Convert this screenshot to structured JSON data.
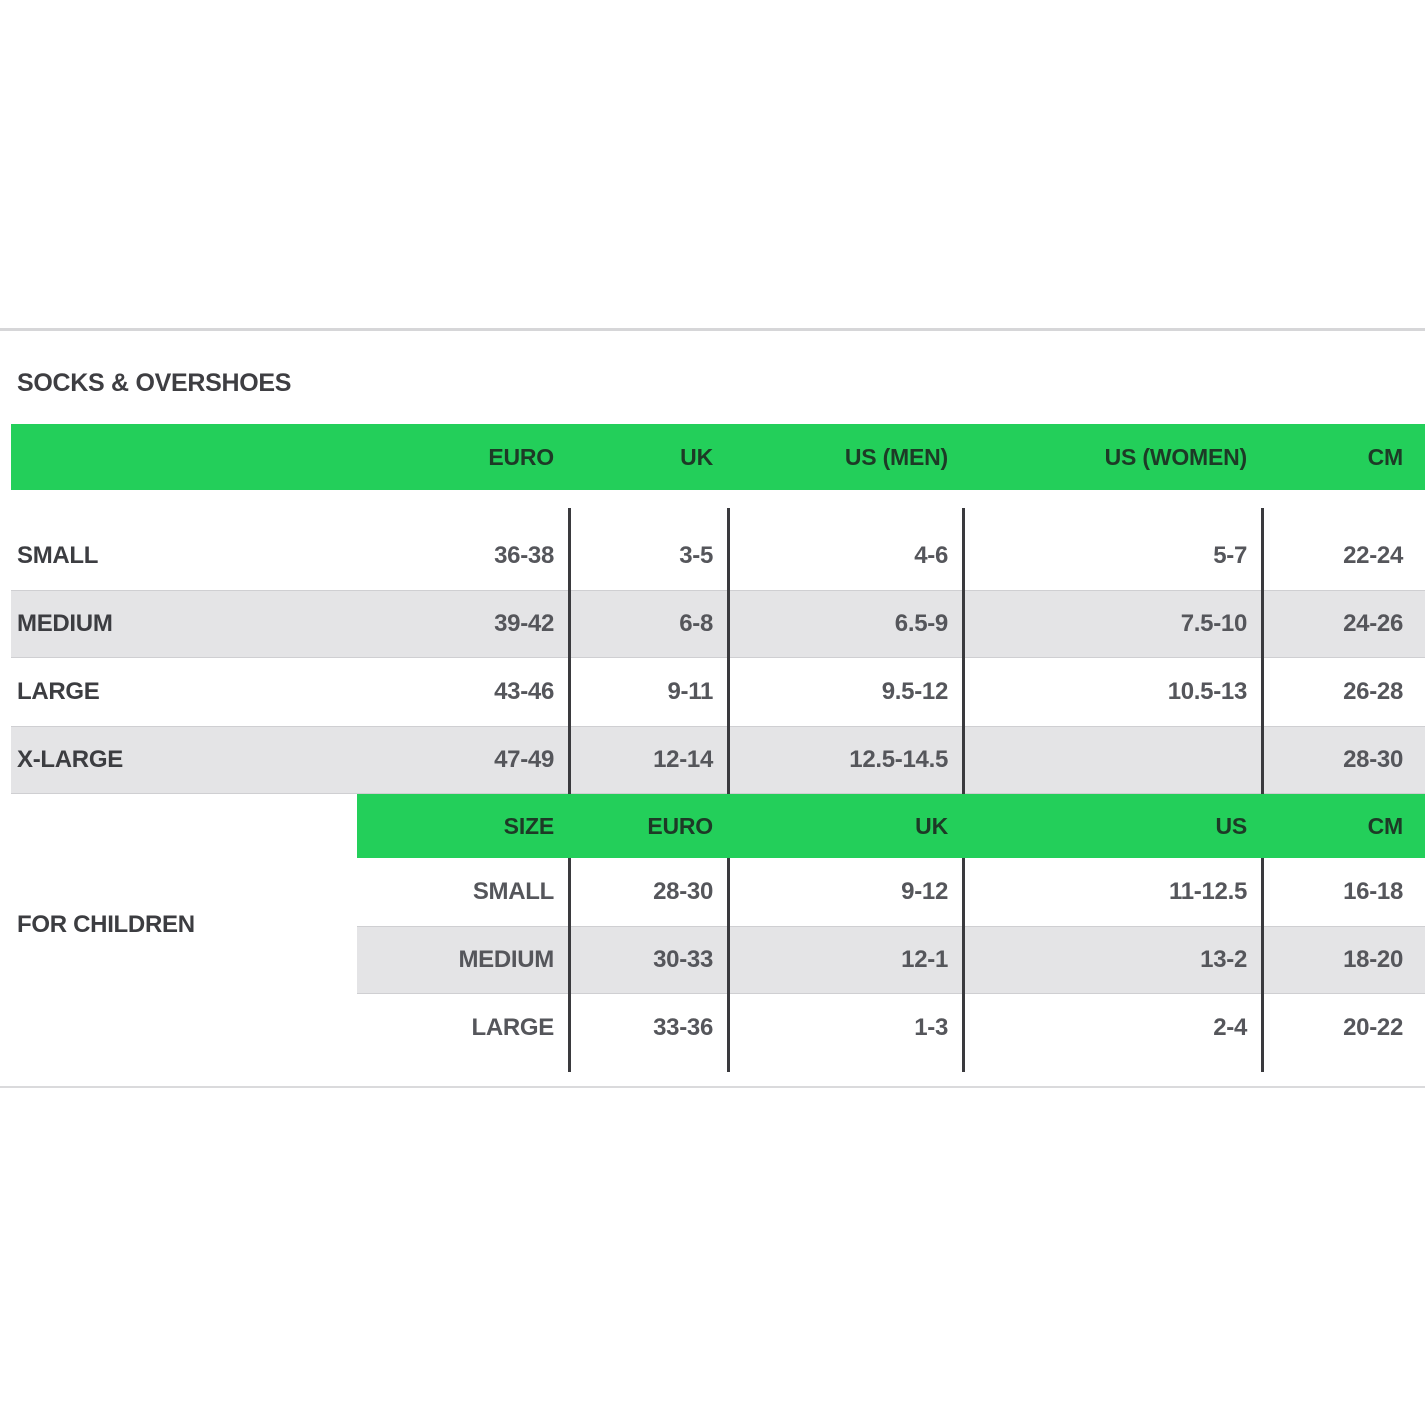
{
  "title": "SOCKS & OVERSHOES",
  "colors": {
    "header_green": "#23cf5a",
    "stripe_gray": "#e4e4e6",
    "separator_dark": "#3a3a3e",
    "text_dark": "#3c3d41",
    "text_value": "#55565b"
  },
  "adults": {
    "headers": [
      "EURO",
      "UK",
      "US (MEN)",
      "US (WOMEN)",
      "CM"
    ],
    "rows": [
      {
        "label": "SMALL",
        "euro": "36-38",
        "uk": "3-5",
        "us_men": "4-6",
        "us_women": "5-7",
        "cm": "22-24"
      },
      {
        "label": "MEDIUM",
        "euro": "39-42",
        "uk": "6-8",
        "us_men": "6.5-9",
        "us_women": "7.5-10",
        "cm": "24-26"
      },
      {
        "label": "LARGE",
        "euro": "43-46",
        "uk": "9-11",
        "us_men": "9.5-12",
        "us_women": "10.5-13",
        "cm": "26-28"
      },
      {
        "label": "X-LARGE",
        "euro": "47-49",
        "uk": "12-14",
        "us_men": "12.5-14.5",
        "us_women": "",
        "cm": "28-30"
      }
    ]
  },
  "children": {
    "label": "FOR CHILDREN",
    "headers": [
      "SIZE",
      "EURO",
      "UK",
      "US",
      "CM"
    ],
    "rows": [
      {
        "size": "SMALL",
        "euro": "28-30",
        "uk": "9-12",
        "us": "11-12.5",
        "cm": "16-18"
      },
      {
        "size": "MEDIUM",
        "euro": "30-33",
        "uk": "12-1",
        "us": "13-2",
        "cm": "18-20"
      },
      {
        "size": "LARGE",
        "euro": "33-36",
        "uk": "1-3",
        "us": "2-4",
        "cm": "20-22"
      }
    ]
  }
}
